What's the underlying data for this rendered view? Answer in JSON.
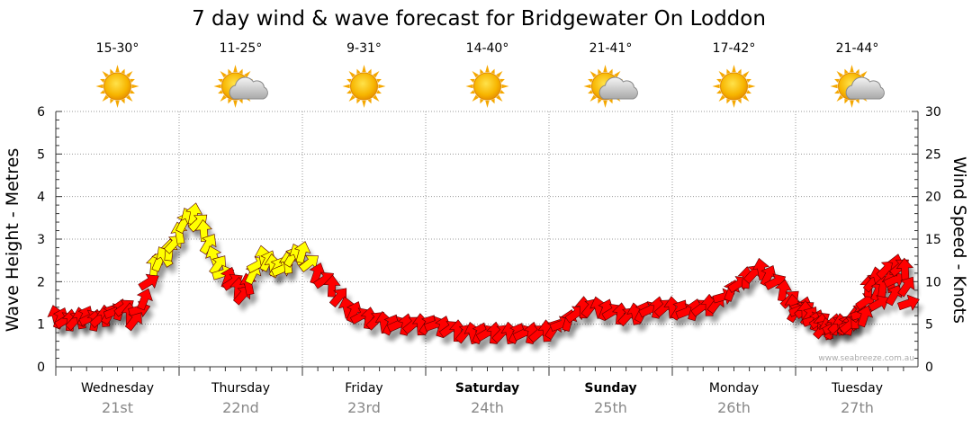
{
  "chart_data": {
    "type": "line",
    "title": "7 day wind & wave forecast for Bridgewater On Loddon",
    "ylabel_left": "Wave Height - Metres",
    "ylabel_right": "Wind Speed - Knots",
    "ylim_left": [
      0,
      6
    ],
    "ylim_right": [
      0,
      30
    ],
    "yticks_left": [
      "0",
      "1",
      "2",
      "3",
      "4",
      "5",
      "6"
    ],
    "yticks_right": [
      "0",
      "5",
      "10",
      "15",
      "20",
      "25",
      "30"
    ],
    "grid": true,
    "watermark": "www.seabreeze.com.au",
    "days": [
      {
        "day": "Wednesday",
        "date": "21st",
        "temp": "15-30°",
        "weather": "sunny",
        "bold": false
      },
      {
        "day": "Thursday",
        "date": "22nd",
        "temp": "11-25°",
        "weather": "partly-cloudy",
        "bold": false
      },
      {
        "day": "Friday",
        "date": "23rd",
        "temp": "9-31°",
        "weather": "sunny",
        "bold": false
      },
      {
        "day": "Saturday",
        "date": "24th",
        "temp": "14-40°",
        "weather": "sunny",
        "bold": true
      },
      {
        "day": "Sunday",
        "date": "25th",
        "temp": "21-41°",
        "weather": "partly-cloudy",
        "bold": true
      },
      {
        "day": "Monday",
        "date": "26th",
        "temp": "17-42°",
        "weather": "sunny",
        "bold": false
      },
      {
        "day": "Tuesday",
        "date": "27th",
        "temp": "21-44°",
        "weather": "partly-cloudy",
        "bold": false
      }
    ],
    "series": [
      {
        "name": "Wind Speed",
        "unit": "knots",
        "x_day": [
          0.0,
          0.08,
          0.16,
          0.24,
          0.32,
          0.4,
          0.48,
          0.56,
          0.64,
          0.72,
          0.8,
          0.88,
          0.96,
          1.04,
          1.12,
          1.2,
          1.28,
          1.36,
          1.44,
          1.52,
          1.6,
          1.68,
          1.76,
          1.84,
          1.92,
          2.0,
          2.12,
          2.24,
          2.36,
          2.48,
          2.6,
          2.72,
          2.84,
          2.96,
          3.08,
          3.2,
          3.32,
          3.44,
          3.56,
          3.68,
          3.8,
          3.92,
          4.04,
          4.16,
          4.28,
          4.4,
          4.52,
          4.64,
          4.76,
          4.88,
          5.0,
          5.12,
          5.24,
          5.36,
          5.48,
          5.6,
          5.72,
          5.84,
          5.96,
          6.08,
          6.2,
          6.32,
          6.44,
          6.56,
          6.68,
          6.8,
          6.92
        ],
        "values": [
          6.0,
          5.5,
          5.5,
          6.0,
          5.5,
          6.0,
          6.5,
          7.0,
          5.5,
          8.0,
          12.0,
          13.0,
          14.5,
          17.0,
          18.0,
          16.0,
          13.0,
          11.0,
          10.0,
          8.5,
          11.0,
          13.0,
          12.0,
          11.5,
          13.0,
          13.5,
          11.0,
          9.5,
          7.0,
          6.0,
          5.5,
          5.0,
          5.0,
          5.0,
          5.0,
          4.5,
          4.0,
          4.0,
          4.0,
          4.0,
          4.0,
          4.0,
          4.5,
          5.5,
          7.0,
          7.0,
          6.5,
          6.0,
          6.5,
          7.0,
          7.0,
          6.5,
          7.0,
          7.5,
          9.0,
          10.5,
          11.5,
          10.0,
          8.0,
          6.5,
          5.5,
          5.0,
          5.0,
          6.0,
          7.5,
          8.5,
          7.5
        ],
        "tail_values": [
          6.5,
          7.0,
          5.5,
          4.5,
          4.5,
          5.0,
          5.0,
          6.5,
          9.5,
          10.5,
          11.5,
          12.0,
          11.5
        ]
      }
    ]
  }
}
